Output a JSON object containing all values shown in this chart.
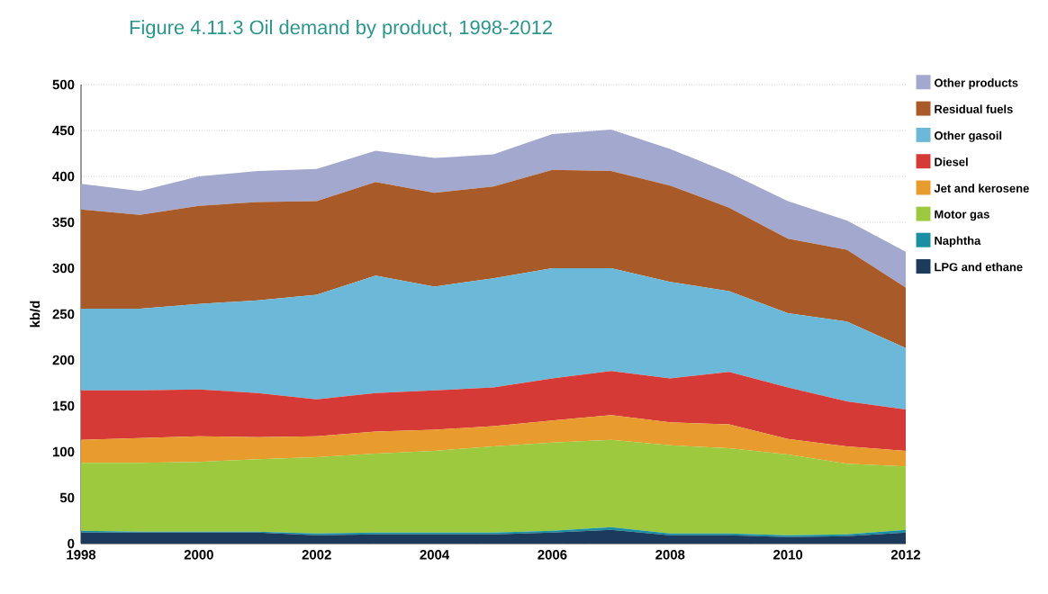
{
  "chart_data": {
    "type": "area",
    "stacked": true,
    "title": "Figure 4.11.3   Oil demand by product, 1998-2012",
    "ylabel": "kb/d",
    "x": [
      1998,
      1999,
      2000,
      2001,
      2002,
      2003,
      2004,
      2005,
      2006,
      2007,
      2008,
      2009,
      2010,
      2011,
      2012
    ],
    "series": [
      {
        "name": "LPG and ethane",
        "color": "#1b3a5c",
        "values": [
          12,
          12,
          12,
          12,
          9,
          10,
          10,
          10,
          12,
          15,
          9,
          9,
          7,
          8,
          12
        ]
      },
      {
        "name": "Naphtha",
        "color": "#1a8fa3",
        "values": [
          2,
          1,
          1,
          1,
          2,
          2,
          2,
          2,
          2,
          3,
          2,
          2,
          2,
          2,
          3
        ]
      },
      {
        "name": "Motor gas",
        "color": "#9dc93e",
        "values": [
          74,
          75,
          76,
          79,
          83,
          86,
          89,
          94,
          96,
          95,
          96,
          93,
          88,
          77,
          69
        ]
      },
      {
        "name": "Jet and kerosene",
        "color": "#e89c2e",
        "values": [
          25,
          27,
          28,
          24,
          23,
          24,
          23,
          22,
          24,
          27,
          25,
          26,
          17,
          19,
          17
        ]
      },
      {
        "name": "Diesel",
        "color": "#d63a36",
        "values": [
          54,
          52,
          51,
          48,
          40,
          42,
          43,
          42,
          46,
          48,
          48,
          57,
          56,
          49,
          45
        ]
      },
      {
        "name": "Other gasoil",
        "color": "#6cb8d8",
        "values": [
          89,
          89,
          93,
          101,
          114,
          128,
          113,
          119,
          120,
          112,
          105,
          88,
          81,
          87,
          67
        ]
      },
      {
        "name": "Residual fuels",
        "color": "#a85a28",
        "values": [
          108,
          102,
          107,
          107,
          102,
          102,
          102,
          100,
          107,
          106,
          105,
          91,
          81,
          78,
          66
        ]
      },
      {
        "name": "Other products",
        "color": "#a3a8cf",
        "values": [
          28,
          26,
          32,
          34,
          35,
          34,
          38,
          35,
          39,
          45,
          40,
          38,
          41,
          32,
          39
        ]
      }
    ],
    "xlim": [
      1998,
      2012
    ],
    "ylim": [
      0,
      500
    ],
    "xticks": [
      1998,
      2000,
      2002,
      2004,
      2006,
      2008,
      2010,
      2012
    ],
    "yticks": [
      0,
      50,
      100,
      150,
      200,
      250,
      300,
      350,
      400,
      450,
      500
    ],
    "grid": "y",
    "legend": "right"
  }
}
